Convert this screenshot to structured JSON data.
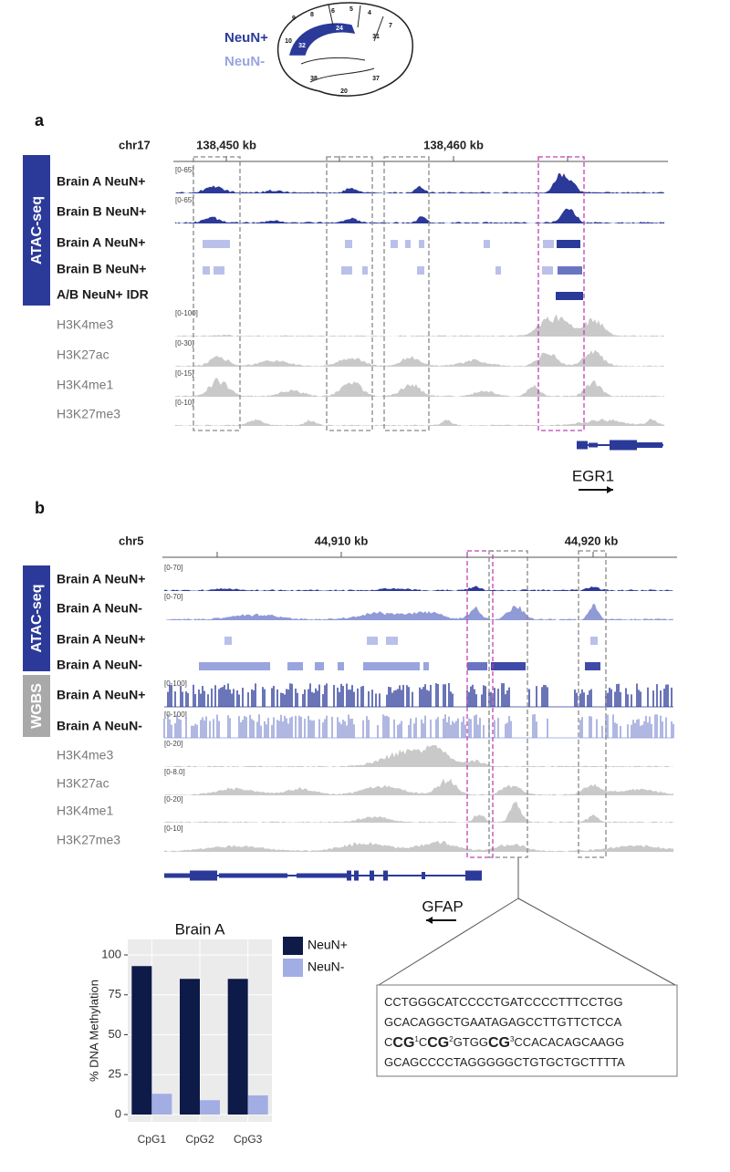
{
  "header": {
    "legend": [
      {
        "text": "NeuN+",
        "color": "#2b3a99"
      },
      {
        "text": "NeuN-",
        "color": "#9aa4de"
      }
    ],
    "brain_areas": [
      "9",
      "8",
      "6",
      "5",
      "4",
      "7",
      "10",
      "32",
      "24",
      "31",
      "38",
      "20",
      "37"
    ]
  },
  "panel_a": {
    "label": "a",
    "chrom": "chr17",
    "coords": [
      "138,450 kb",
      "138,460 kb"
    ],
    "assays": [
      "ATAC-seq"
    ],
    "tracks": [
      {
        "name": "Brain A NeuN+",
        "scale": "[0-65]",
        "kind": "signal",
        "color": "#2b3a99"
      },
      {
        "name": "Brain B NeuN+",
        "scale": "[0-65]",
        "kind": "signal",
        "color": "#2b3a99"
      },
      {
        "name": "Brain A NeuN+",
        "kind": "peaks",
        "color": "#b9c0ea"
      },
      {
        "name": "Brain B NeuN+",
        "kind": "peaks",
        "color": "#b9c0ea"
      },
      {
        "name": "A/B NeuN+ IDR",
        "kind": "peaks",
        "color": "#2b3a99"
      },
      {
        "name": "H3K4me3",
        "scale": "[0-100]",
        "kind": "histone",
        "color": "#c9c9c9"
      },
      {
        "name": "H3K27ac",
        "scale": "[0-30]",
        "kind": "histone",
        "color": "#c9c9c9"
      },
      {
        "name": "H3K4me1",
        "scale": "[0-15]",
        "kind": "histone",
        "color": "#c9c9c9"
      },
      {
        "name": "H3K27me3",
        "scale": "[0-10]",
        "kind": "histone",
        "color": "#c9c9c9"
      }
    ],
    "gene": "EGR1"
  },
  "panel_b": {
    "label": "b",
    "chrom": "chr5",
    "coords": [
      "44,910 kb",
      "44,920 kb"
    ],
    "assays": [
      "ATAC-seq",
      "WGBS"
    ],
    "tracks": [
      {
        "name": "Brain A NeuN+",
        "scale": "[0-70]",
        "kind": "signal",
        "color": "#2b3a99"
      },
      {
        "name": "Brain A NeuN-",
        "scale": "[0-70]",
        "kind": "signal",
        "color": "#8f9ad6"
      },
      {
        "name": "Brain A NeuN+",
        "kind": "peaks",
        "color": "#b9c0ea"
      },
      {
        "name": "Brain A NeuN-",
        "kind": "peaks",
        "color": "#9aa4de"
      },
      {
        "name": "Brain A NeuN+",
        "scale": "[0-100]",
        "kind": "wgbs",
        "color": "#2b3a99"
      },
      {
        "name": "Brain A NeuN-",
        "scale": "[0-100]",
        "kind": "wgbs",
        "color": "#8f9ad6"
      },
      {
        "name": "H3K4me3",
        "scale": "[0-20]",
        "kind": "histone",
        "color": "#c9c9c9"
      },
      {
        "name": "H3K27ac",
        "scale": "[0-8.0]",
        "kind": "histone",
        "color": "#c9c9c9"
      },
      {
        "name": "H3K4me1",
        "scale": "[0-20]",
        "kind": "histone",
        "color": "#c9c9c9"
      },
      {
        "name": "H3K27me3",
        "scale": "[0-10]",
        "kind": "histone",
        "color": "#c9c9c9"
      }
    ],
    "gene": "GFAP"
  },
  "sequence": [
    [
      {
        "text": "CCTGGGCATCCCCTGATCCCCTTTCCTGG"
      }
    ],
    [
      {
        "text": "GCACAGGCTGAATAGAGCCTTGTTCTCCA"
      }
    ],
    [
      {
        "text": "C"
      },
      {
        "text": "CG",
        "style": "bold"
      },
      {
        "text": "1",
        "style": "sup"
      },
      {
        "text": "C"
      },
      {
        "text": "CG",
        "style": "bold"
      },
      {
        "text": "2",
        "style": "sup"
      },
      {
        "text": "GTGG"
      },
      {
        "text": "CG",
        "style": "bold"
      },
      {
        "text": "3",
        "style": "sup"
      },
      {
        "text": "CCACACAGCAAGG"
      }
    ],
    [
      {
        "text": "GCAGCCCCTAGGGGGCTGTGCTGCTTTTA"
      }
    ]
  ],
  "chart_data": {
    "type": "bar",
    "title": "Brain A",
    "ylabel": "% DNA Methylation",
    "categories": [
      "CpG1",
      "CpG2",
      "CpG3"
    ],
    "series": [
      {
        "name": "NeuN+",
        "color": "#0e1a48",
        "values": [
          93,
          85,
          85
        ]
      },
      {
        "name": "NeuN-",
        "color": "#a2ade3",
        "values": [
          13,
          9,
          12
        ]
      }
    ],
    "ylim": [
      0,
      100
    ],
    "yticks": [
      0,
      25,
      50,
      75,
      100
    ],
    "grid": true,
    "legend": "right"
  }
}
